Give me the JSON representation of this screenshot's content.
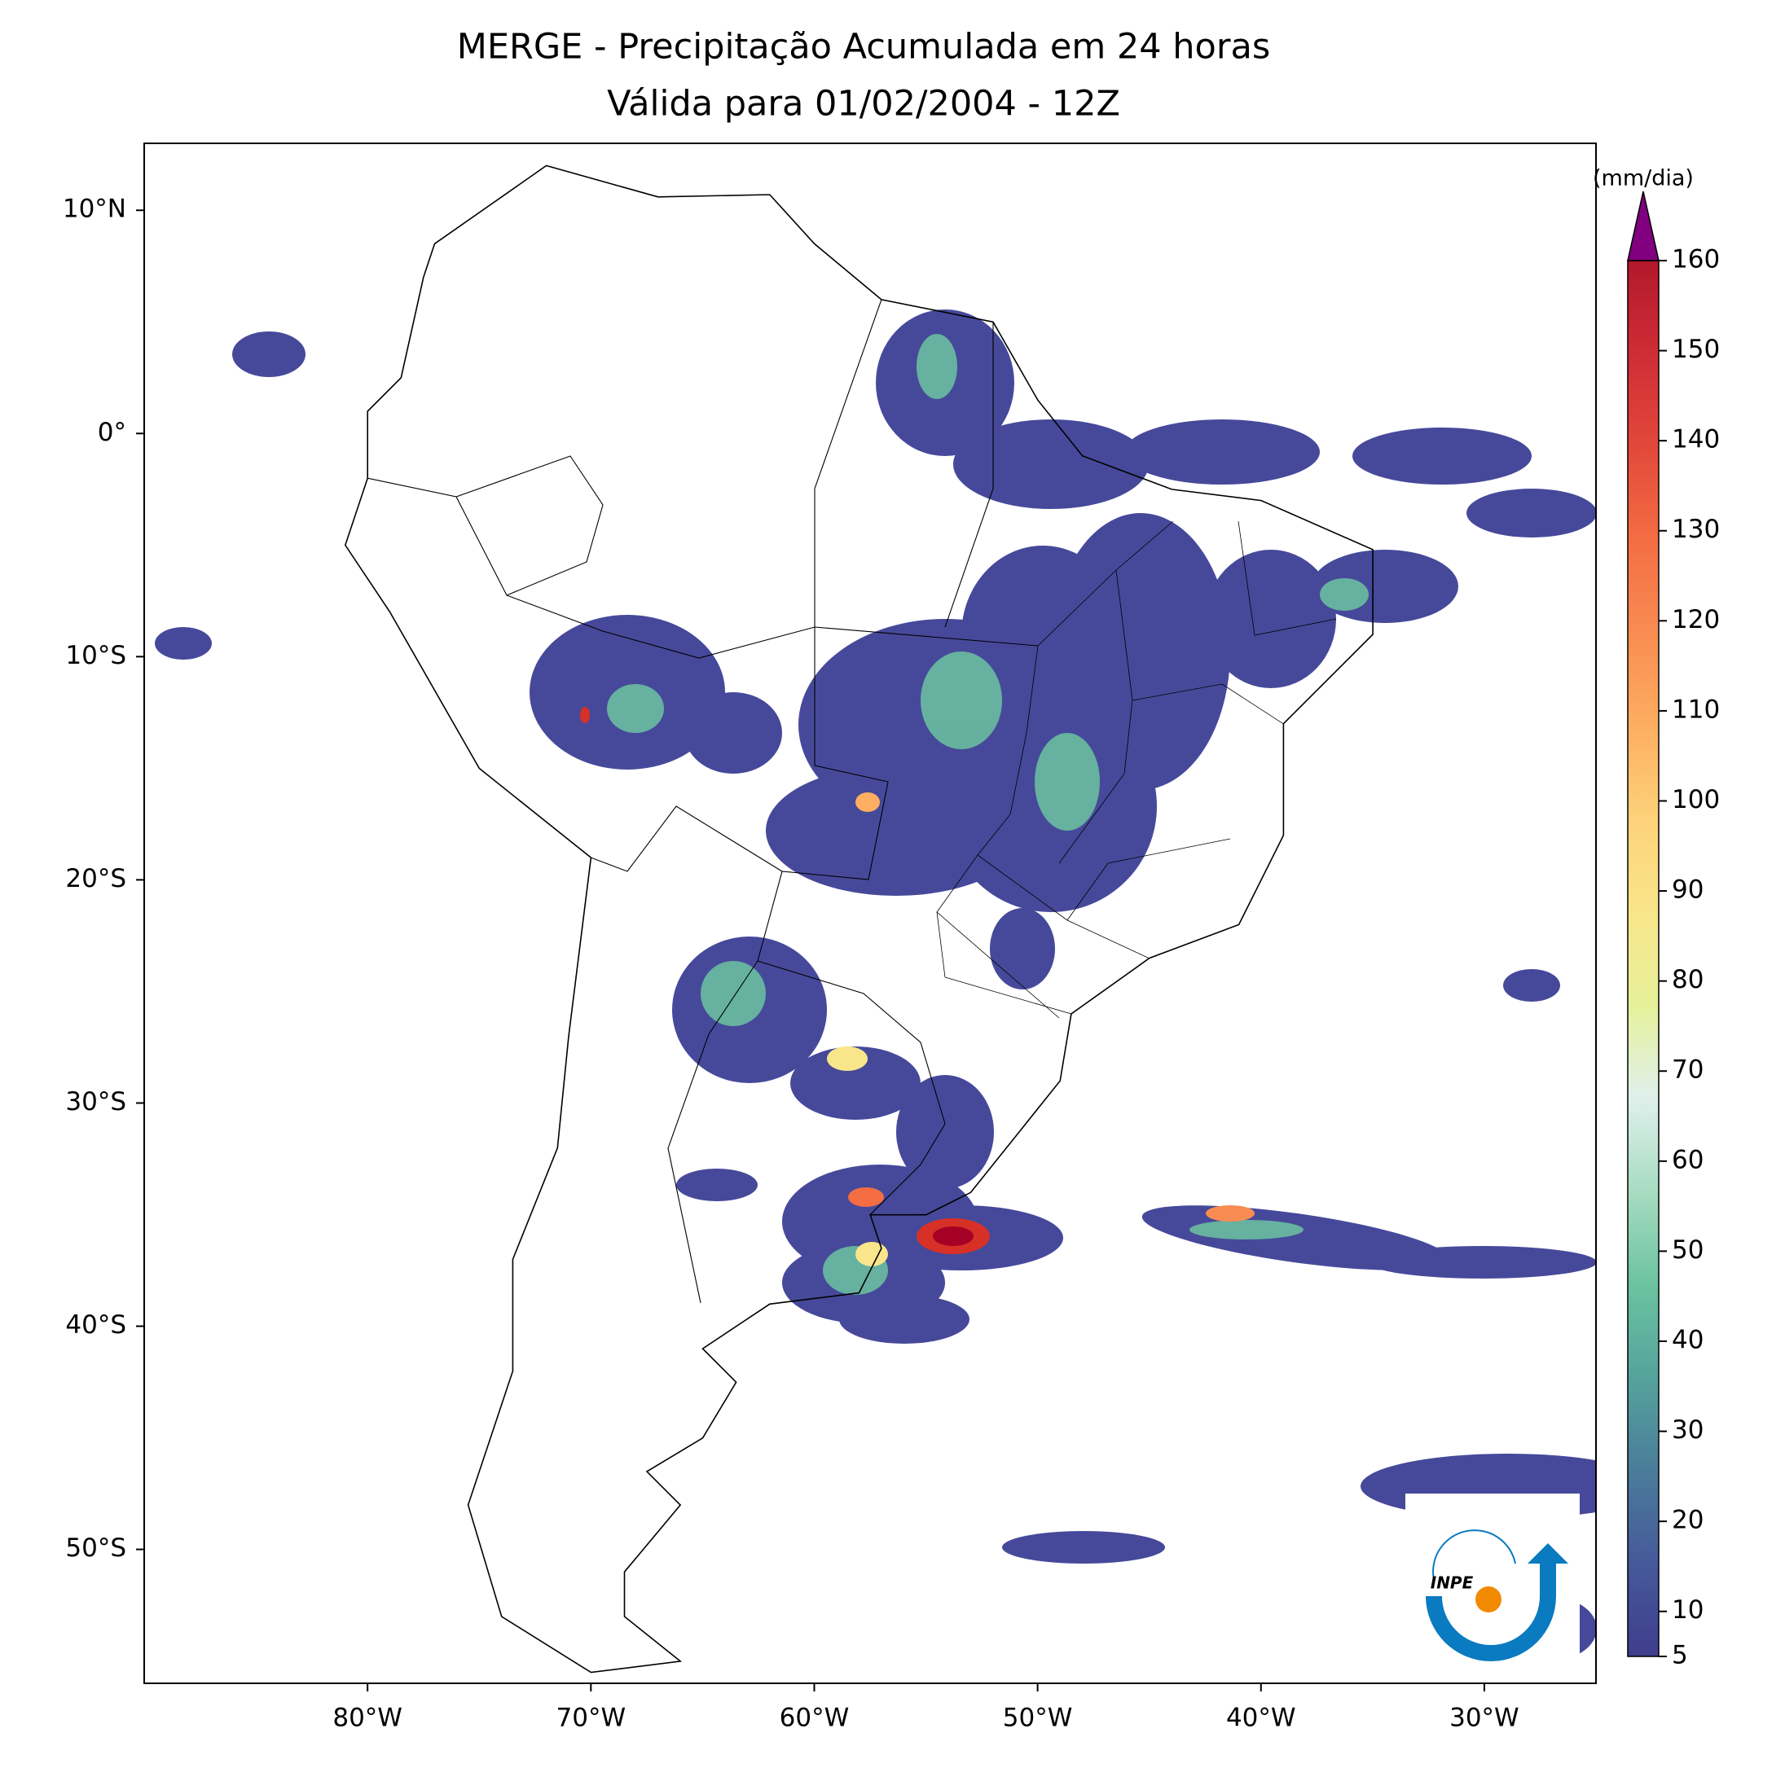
{
  "chart_data": {
    "type": "map",
    "title": "MERGE - Precipitação Acumulada em 24 horas",
    "subtitle": "Válida para 01/02/2004 - 12Z",
    "xlim": [
      -90,
      -25
    ],
    "ylim": [
      -56,
      13
    ],
    "xticks": [
      {
        "value": -80,
        "label": "80°W"
      },
      {
        "value": -70,
        "label": "70°W"
      },
      {
        "value": -60,
        "label": "60°W"
      },
      {
        "value": -50,
        "label": "50°W"
      },
      {
        "value": -40,
        "label": "40°W"
      },
      {
        "value": -30,
        "label": "30°W"
      }
    ],
    "yticks": [
      {
        "value": 10,
        "label": "10°N"
      },
      {
        "value": 0,
        "label": "0°"
      },
      {
        "value": -10,
        "label": "10°S"
      },
      {
        "value": -20,
        "label": "20°S"
      },
      {
        "value": -30,
        "label": "30°S"
      },
      {
        "value": -40,
        "label": "40°S"
      },
      {
        "value": -50,
        "label": "50°S"
      }
    ],
    "colorbar": {
      "label": "(mm/dia)",
      "lim": [
        5,
        160
      ],
      "ticks": [
        5,
        10,
        20,
        30,
        40,
        50,
        60,
        70,
        80,
        90,
        100,
        110,
        120,
        130,
        140,
        150,
        160
      ],
      "colors": [
        "#3e3d8c",
        "#46599a",
        "#4a7c9a",
        "#55a39c",
        "#6cc3a0",
        "#a8dcc2",
        "#dff0ec",
        "#e6f19a",
        "#f9e58a",
        "#fdd27a",
        "#fdae61",
        "#f98c52",
        "#f46d43",
        "#e2483a",
        "#cf2d36",
        "#b2182b"
      ],
      "extend_color": "#800080"
    }
  },
  "logo": "INPE"
}
